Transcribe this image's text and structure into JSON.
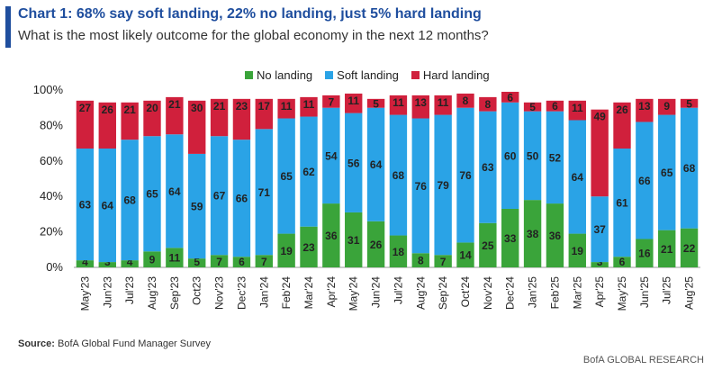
{
  "header": {
    "title": "Chart 1: 68% say soft landing, 22% no landing, just 5% hard landing",
    "subtitle": "What is the most likely outcome for the global economy in the next 12 months?"
  },
  "colors": {
    "no_landing": "#3aa43a",
    "soft_landing": "#2aa3e6",
    "hard_landing": "#d0203c",
    "title": "#1f4e9e"
  },
  "footer": {
    "source_label": "Source:",
    "source_text": "BofA Global Fund Manager Survey",
    "brand": "BofA GLOBAL RESEARCH"
  },
  "chart_data": {
    "type": "bar",
    "stacked": true,
    "ylim": [
      0,
      100
    ],
    "yticks": [
      0,
      20,
      40,
      60,
      80,
      100
    ],
    "ytick_labels": [
      "0%",
      "20%",
      "40%",
      "60%",
      "80%",
      "100%"
    ],
    "categories": [
      "May'23",
      "Jun'23",
      "Jul'23",
      "Aug'23",
      "Sep'23",
      "Oct23",
      "Nov'23",
      "Dec'23",
      "Jan'24",
      "Feb'24",
      "Mar'24",
      "Apr'24",
      "May'24",
      "Jun'24",
      "Jul'24",
      "Aug'24",
      "Sep'24",
      "Oct'24",
      "Nov'24",
      "Dec'24",
      "Jan'25",
      "Feb'25",
      "Mar'25",
      "Apr'25",
      "May'25",
      "Jun'25",
      "Jul'25",
      "Aug'25"
    ],
    "series": [
      {
        "name": "No landing",
        "values": [
          4,
          3,
          4,
          9,
          11,
          5,
          7,
          6,
          7,
          19,
          23,
          36,
          31,
          26,
          18,
          8,
          7,
          14,
          25,
          33,
          38,
          36,
          19,
          3,
          6,
          16,
          21,
          22
        ]
      },
      {
        "name": "Soft landing",
        "values": [
          63,
          64,
          68,
          65,
          64,
          59,
          67,
          66,
          71,
          65,
          62,
          54,
          56,
          64,
          68,
          76,
          79,
          76,
          63,
          60,
          50,
          52,
          64,
          37,
          61,
          66,
          65,
          68
        ]
      },
      {
        "name": "Hard landing",
        "values": [
          27,
          26,
          21,
          20,
          21,
          30,
          21,
          23,
          17,
          11,
          11,
          7,
          11,
          5,
          11,
          13,
          11,
          8,
          8,
          6,
          5,
          6,
          11,
          49,
          26,
          13,
          9,
          5
        ]
      }
    ],
    "legend_position": "top-center"
  }
}
